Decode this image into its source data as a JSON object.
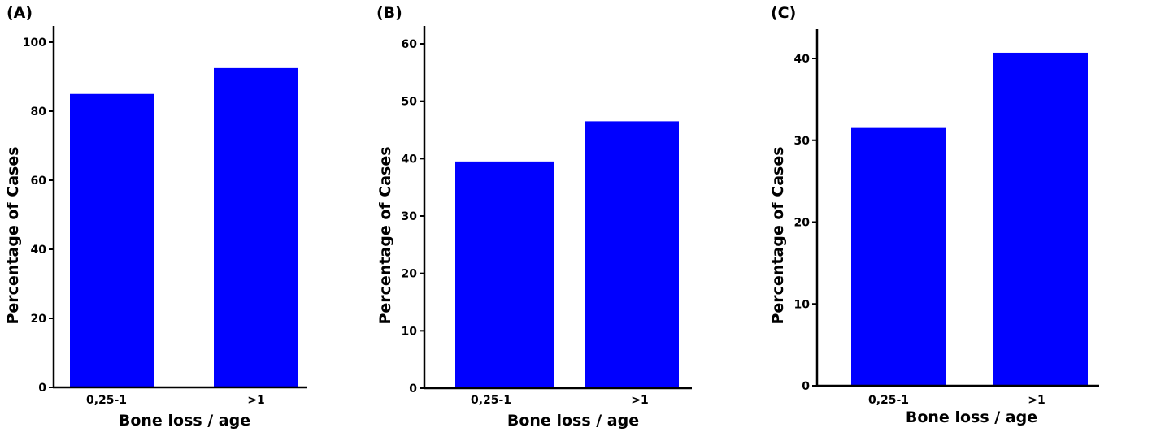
{
  "chart_data": [
    {
      "type": "bar",
      "panel": "(A)",
      "categories": [
        "0,25-1",
        ">1"
      ],
      "values": [
        85,
        92.5
      ],
      "xlabel": "Bone loss / age",
      "ylabel": "Percentage of Cases",
      "ylim": [
        0,
        100
      ],
      "yticks": [
        0,
        20,
        40,
        60,
        80,
        100
      ],
      "bar_color": "#0000ff",
      "grid": false
    },
    {
      "type": "bar",
      "panel": "(B)",
      "categories": [
        "0,25-1",
        ">1"
      ],
      "values": [
        39.5,
        46.5
      ],
      "xlabel": "Bone loss / age",
      "ylabel": "Percentage of Cases",
      "ylim": [
        0,
        60
      ],
      "yticks": [
        0,
        10,
        20,
        30,
        40,
        50,
        60
      ],
      "bar_color": "#0000ff",
      "grid": false
    },
    {
      "type": "bar",
      "panel": "(C)",
      "categories": [
        "0,25-1",
        ">1"
      ],
      "values": [
        31.5,
        40.7
      ],
      "xlabel": "Bone loss / age",
      "ylabel": "Percentage of Cases",
      "ylim": [
        0,
        40
      ],
      "yticks": [
        0,
        10,
        20,
        30,
        40
      ],
      "bar_color": "#0000ff",
      "grid": false
    }
  ]
}
